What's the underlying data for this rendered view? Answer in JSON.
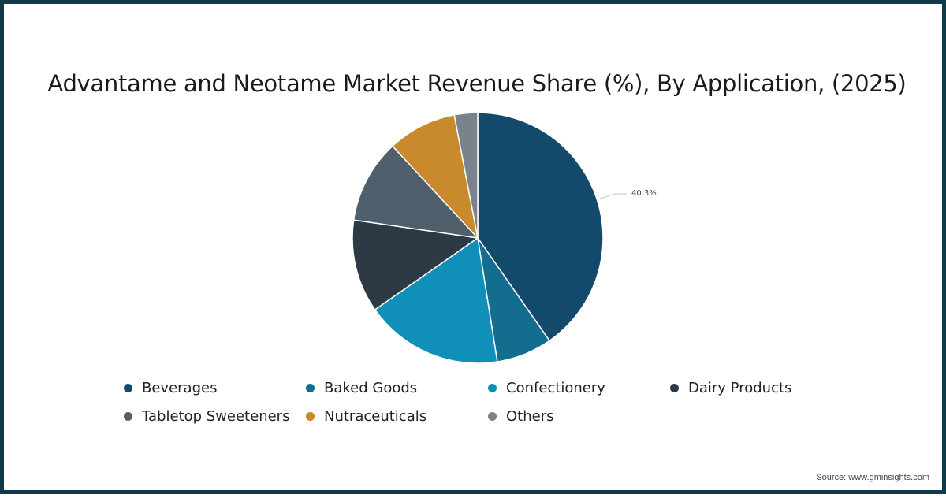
{
  "chart_data": {
    "type": "pie",
    "title": "Advantame and Neotame Market Revenue Share (%), By Application, (2025)",
    "categories": [
      "Beverages",
      "Baked Goods",
      "Confectionery",
      "Dairy Products",
      "Tabletop Sweeteners",
      "Nutraceuticals",
      "Others"
    ],
    "values": [
      40.3,
      7.2,
      17.8,
      12.0,
      10.8,
      8.9,
      3.0
    ],
    "colors": [
      "#134a6b",
      "#136d8e",
      "#1090b9",
      "#2d3944",
      "#4f5f6b",
      "#c98a2e",
      "#7a838c"
    ],
    "data_labels": [
      {
        "category": "Beverages",
        "text": "40.3%"
      }
    ],
    "legend_position": "bottom",
    "start_angle_deg": 0,
    "direction": "clockwise"
  },
  "title": "Advantame and Neotame Market Revenue Share (%), By Application, (2025)",
  "label": "40.3%",
  "legend": [
    {
      "label": "Beverages",
      "color": "#134a6b"
    },
    {
      "label": "Baked Goods",
      "color": "#136d8e"
    },
    {
      "label": "Confectionery",
      "color": "#1090b9"
    },
    {
      "label": "Dairy Products",
      "color": "#2d3944"
    },
    {
      "label": "Tabletop Sweeteners",
      "color": "#4f5f6b"
    },
    {
      "label": "Nutraceuticals",
      "color": "#c98a2e"
    },
    {
      "label": "Others",
      "color": "#7a838c"
    }
  ],
  "source": "Source: www.gminsights.com",
  "frame_color": "#0e3a4a"
}
